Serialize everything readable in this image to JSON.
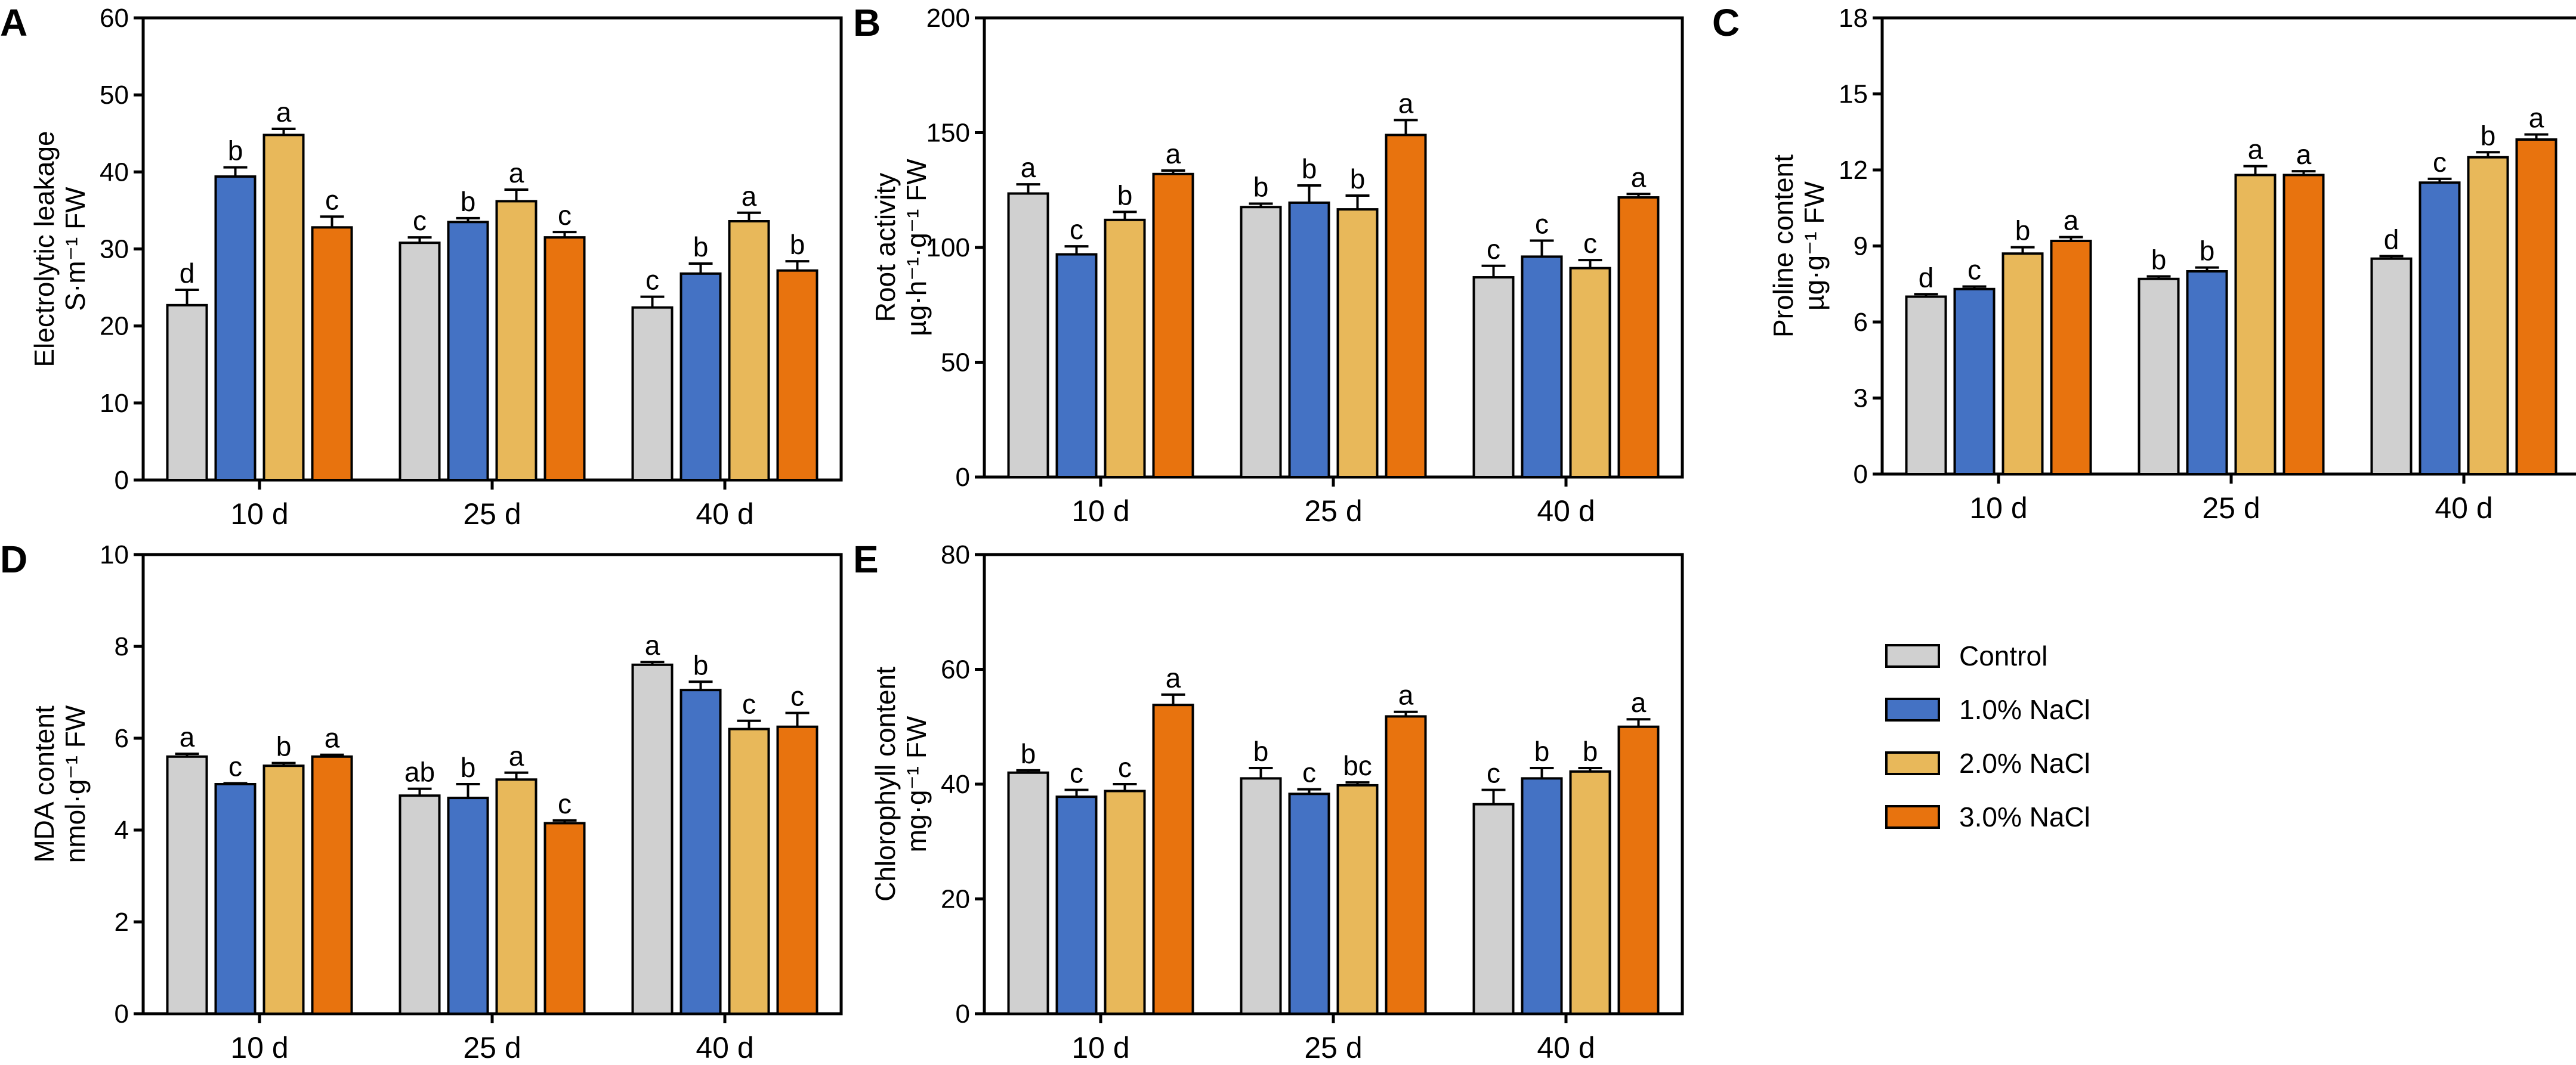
{
  "colors": {
    "Control": "#d0d0d0",
    "1.0% NaCl": "#4472c4",
    "2.0% NaCl": "#e8b85a",
    "3.0% NaCl": "#e8730e"
  },
  "legend": {
    "items": [
      "Control",
      "1.0% NaCl",
      "2.0% NaCl",
      "3.0% NaCl"
    ]
  },
  "chart_data": [
    {
      "type": "bar",
      "panel": "A",
      "ylabel_line1": "Electrolytic leakage",
      "ylabel_unit": "S·m⁻¹ FW",
      "ylim": [
        0,
        60
      ],
      "yticks": [
        0,
        10,
        20,
        30,
        40,
        50,
        60
      ],
      "categories": [
        "10 d",
        "25 d",
        "40 d"
      ],
      "series": [
        {
          "name": "Control",
          "values": [
            22.7,
            30.8,
            22.4
          ],
          "errors": [
            2.0,
            0.7,
            1.4
          ],
          "letters": [
            "d",
            "c",
            "c"
          ]
        },
        {
          "name": "1.0% NaCl",
          "values": [
            39.4,
            33.5,
            26.8
          ],
          "errors": [
            1.2,
            0.5,
            1.3
          ],
          "letters": [
            "b",
            "b",
            "b"
          ]
        },
        {
          "name": "2.0% NaCl",
          "values": [
            44.8,
            36.2,
            33.6
          ],
          "errors": [
            0.8,
            1.5,
            1.1
          ],
          "letters": [
            "a",
            "a",
            "a"
          ]
        },
        {
          "name": "3.0% NaCl",
          "values": [
            32.8,
            31.5,
            27.2
          ],
          "errors": [
            1.4,
            0.7,
            1.2
          ],
          "letters": [
            "c",
            "c",
            "b"
          ]
        }
      ]
    },
    {
      "type": "bar",
      "panel": "B",
      "ylabel_line1": "Root activity",
      "ylabel_unit": "µg·h⁻¹·g⁻¹ FW",
      "ylim": [
        0,
        200
      ],
      "yticks": [
        0,
        50,
        100,
        150,
        200
      ],
      "categories": [
        "10 d",
        "25 d",
        "40 d"
      ],
      "series": [
        {
          "name": "Control",
          "values": [
            123.5,
            117.6,
            87.0
          ],
          "errors": [
            4.0,
            1.5,
            5.0
          ],
          "letters": [
            "a",
            "b",
            "c"
          ]
        },
        {
          "name": "1.0% NaCl",
          "values": [
            97.0,
            119.5,
            96.0
          ],
          "errors": [
            3.5,
            7.5,
            7.0
          ],
          "letters": [
            "c",
            "b",
            "c"
          ]
        },
        {
          "name": "2.0% NaCl",
          "values": [
            112.0,
            116.6,
            91.0
          ],
          "errors": [
            3.5,
            6.0,
            3.5
          ],
          "letters": [
            "b",
            "b",
            "c"
          ]
        },
        {
          "name": "3.0% NaCl",
          "values": [
            132.0,
            149.0,
            121.8
          ],
          "errors": [
            1.5,
            6.5,
            1.5
          ],
          "letters": [
            "a",
            "a",
            "a"
          ]
        }
      ]
    },
    {
      "type": "bar",
      "panel": "C",
      "ylabel_line1": "Proline content",
      "ylabel_unit": "µg·g⁻¹ FW",
      "ylim": [
        0,
        18
      ],
      "yticks": [
        0,
        3,
        6,
        9,
        12,
        15,
        18
      ],
      "categories": [
        "10 d",
        "25 d",
        "40 d"
      ],
      "series": [
        {
          "name": "Control",
          "values": [
            7.0,
            7.7,
            8.5
          ],
          "errors": [
            0.1,
            0.1,
            0.1
          ],
          "letters": [
            "d",
            "b",
            "d"
          ]
        },
        {
          "name": "1.0% NaCl",
          "values": [
            7.3,
            8.0,
            11.5
          ],
          "errors": [
            0.1,
            0.15,
            0.15
          ],
          "letters": [
            "c",
            "b",
            "c"
          ]
        },
        {
          "name": "2.0% NaCl",
          "values": [
            8.7,
            11.8,
            12.5
          ],
          "errors": [
            0.25,
            0.35,
            0.2
          ],
          "letters": [
            "b",
            "a",
            "b"
          ]
        },
        {
          "name": "3.0% NaCl",
          "values": [
            9.2,
            11.8,
            13.2
          ],
          "errors": [
            0.15,
            0.15,
            0.2
          ],
          "letters": [
            "a",
            "a",
            "a"
          ]
        }
      ]
    },
    {
      "type": "bar",
      "panel": "D",
      "ylabel_line1": "MDA content",
      "ylabel_unit": "nmol·g⁻¹ FW",
      "ylim": [
        0,
        10
      ],
      "yticks": [
        0,
        2,
        4,
        6,
        8,
        10
      ],
      "categories": [
        "10 d",
        "25 d",
        "40 d"
      ],
      "series": [
        {
          "name": "Control",
          "values": [
            5.6,
            4.75,
            7.6
          ],
          "errors": [
            0.06,
            0.15,
            0.06
          ],
          "letters": [
            "a",
            "ab",
            "a"
          ]
        },
        {
          "name": "1.0% NaCl",
          "values": [
            5.0,
            4.7,
            7.05
          ],
          "errors": [
            0.02,
            0.3,
            0.18
          ],
          "letters": [
            "c",
            "b",
            "b"
          ]
        },
        {
          "name": "2.0% NaCl",
          "values": [
            5.4,
            5.1,
            6.2
          ],
          "errors": [
            0.06,
            0.15,
            0.18
          ],
          "letters": [
            "b",
            "a",
            "c"
          ]
        },
        {
          "name": "3.0% NaCl",
          "values": [
            5.6,
            4.15,
            6.25
          ],
          "errors": [
            0.04,
            0.06,
            0.3
          ],
          "letters": [
            "a",
            "c",
            "c"
          ]
        }
      ]
    },
    {
      "type": "bar",
      "panel": "E",
      "ylabel_line1": "Chlorophyll content",
      "ylabel_unit": "mg·g⁻¹ FW",
      "ylim": [
        0,
        80
      ],
      "yticks": [
        0,
        20,
        40,
        60,
        80
      ],
      "categories": [
        "10 d",
        "25 d",
        "40 d"
      ],
      "series": [
        {
          "name": "Control",
          "values": [
            42.0,
            41.0,
            36.5
          ],
          "errors": [
            0.4,
            1.8,
            2.5
          ],
          "letters": [
            "b",
            "b",
            "c"
          ]
        },
        {
          "name": "1.0% NaCl",
          "values": [
            37.8,
            38.3,
            41.0
          ],
          "errors": [
            1.2,
            0.8,
            1.8
          ],
          "letters": [
            "c",
            "c",
            "b"
          ]
        },
        {
          "name": "2.0% NaCl",
          "values": [
            38.8,
            39.8,
            42.2
          ],
          "errors": [
            1.2,
            0.5,
            0.6
          ],
          "letters": [
            "c",
            "bc",
            "b"
          ]
        },
        {
          "name": "3.0% NaCl",
          "values": [
            53.8,
            51.8,
            50.0
          ],
          "errors": [
            1.8,
            0.8,
            1.3
          ],
          "letters": [
            "a",
            "a",
            "a"
          ]
        }
      ]
    }
  ]
}
